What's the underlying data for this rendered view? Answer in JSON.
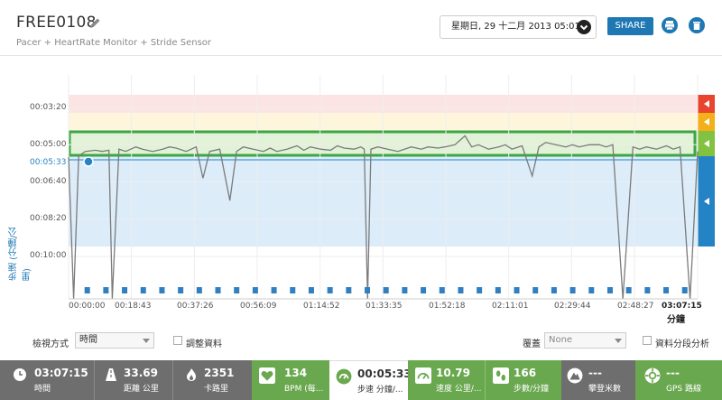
{
  "header": {
    "title": "FREE0108",
    "subtitle": "Pacer + HeartRate Monitor + Stride Sensor",
    "date": "星期日, 29 十二月 2013 05:01",
    "share_label": "SHARE"
  },
  "icons": {
    "edit": "pencil-icon",
    "date_dropdown": "chevron-down-icon",
    "print": "printer-icon",
    "delete": "trash-icon"
  },
  "chart": {
    "ylabel": "步速 (分鐘/公里)",
    "xunit": "分鐘",
    "yticks": [
      "00:03:20",
      "00:05:00",
      "00:05:33",
      "00:06:40",
      "00:08:20",
      "00:10:00"
    ],
    "xticks": [
      "00:00:00",
      "00:18:43",
      "00:37:26",
      "00:56:09",
      "01:14:52",
      "01:33:35",
      "01:52:18",
      "02:11:01",
      "02:29:44",
      "02:48:27",
      "03:07:15"
    ]
  },
  "chart_data": {
    "type": "line",
    "title": "",
    "xlabel": "分鐘",
    "ylabel": "步速 (分鐘/公里)",
    "x_range": [
      "00:00:00",
      "03:07:15"
    ],
    "y_axis_inverted": true,
    "y_ticks": [
      "00:03:20",
      "00:05:00",
      "00:05:33",
      "00:06:40",
      "00:08:20",
      "00:10:00"
    ],
    "target_pace": "00:05:33",
    "zones": [
      {
        "name": "red",
        "color": "#fde4e4"
      },
      {
        "name": "yellow",
        "color": "#fdf6dd"
      },
      {
        "name": "green",
        "color": "#e2f2d6"
      },
      {
        "name": "blue",
        "color": "#dcecf9"
      }
    ],
    "series": [
      {
        "values_min": [
          0,
          1.5,
          3,
          5,
          8,
          10,
          12,
          13,
          15,
          17,
          18.5,
          20,
          22,
          25,
          28,
          30,
          32,
          35,
          38,
          40,
          42,
          45,
          48,
          50,
          52,
          55,
          58,
          60,
          62,
          65,
          68,
          70,
          72,
          75,
          78,
          80,
          82,
          85,
          87,
          88,
          89,
          90,
          92,
          95,
          98,
          100,
          102,
          105,
          107,
          110,
          112,
          115,
          118,
          120,
          122,
          125,
          128,
          130,
          132,
          135,
          138,
          140,
          142,
          145,
          148,
          150,
          152,
          155,
          158,
          160,
          162,
          165,
          168,
          170,
          172,
          175,
          178,
          180,
          182,
          185,
          187.25
        ],
        "values_pace_min": [
          5.55,
          9.9,
          5.5,
          5.3,
          5.25,
          5.3,
          5.25,
          9.9,
          5.2,
          5.3,
          5.2,
          5.1,
          5.2,
          5.3,
          5.2,
          5.1,
          5.15,
          5.3,
          5.1,
          6.5,
          5.3,
          5.2,
          7.5,
          5.3,
          5.1,
          5.2,
          5.3,
          5.15,
          5.3,
          5.2,
          5.05,
          5.25,
          5.1,
          5.2,
          5.25,
          5.05,
          5.15,
          5.2,
          5.1,
          5.2,
          9.9,
          5.2,
          5.1,
          5.2,
          5.3,
          5.2,
          5.1,
          5.2,
          5.1,
          5.15,
          5.1,
          5.0,
          4.6,
          5.1,
          5.0,
          5.2,
          5.1,
          5.0,
          5.2,
          5.05,
          6.4,
          5.1,
          4.9,
          5.0,
          5.1,
          5.0,
          5.1,
          5.0,
          5.0,
          5.1,
          5.0,
          9.9,
          5.1,
          5.2,
          5.1,
          5.2,
          5.05,
          5.2,
          5.1,
          9.9,
          5.3
        ]
      }
    ]
  },
  "controls": {
    "view_label": "檢視方式",
    "view_value": "時間",
    "adjust_label": "調整資料",
    "overlay_label": "覆蓋",
    "overlay_value": "None",
    "segment_label": "資料分段分析"
  },
  "stats": [
    {
      "value": "03:07:15",
      "label": "時間",
      "icon": "clock-icon"
    },
    {
      "value": "33.69",
      "label": "距離 公里",
      "icon": "road-icon"
    },
    {
      "value": "2351",
      "label": "卡路里",
      "icon": "flame-icon"
    },
    {
      "value": "134",
      "label": "BPM (每...",
      "icon": "heart-icon"
    },
    {
      "value": "00:05:33",
      "label": "步速 分鐘/...",
      "icon": "pace-gauge-icon"
    },
    {
      "value": "10.79",
      "label": "速度 公里/...",
      "icon": "speedometer-icon"
    },
    {
      "value": "166",
      "label": "步數/分鐘",
      "icon": "footprints-icon"
    },
    {
      "value": "---",
      "label": "攀登米數",
      "icon": "mountain-icon"
    },
    {
      "value": "---",
      "label": "GPS 路線",
      "icon": "gps-icon"
    }
  ]
}
